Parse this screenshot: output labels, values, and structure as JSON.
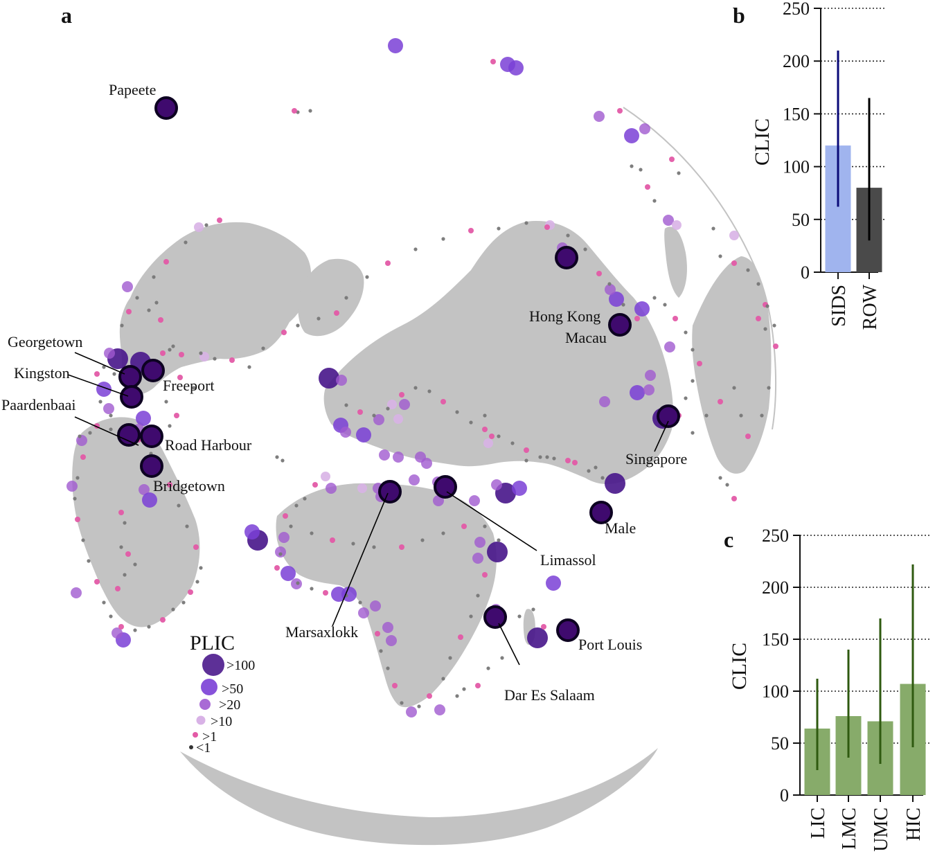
{
  "panels": {
    "a": {
      "letter": "a"
    },
    "b": {
      "letter": "b"
    },
    "c": {
      "letter": "c"
    }
  },
  "colors": {
    "land": "#c3c3c3",
    "tier_gt100": "#4b1a8c",
    "tier_gt50": "#7a3fd6",
    "tier_gt20": "#a05ad0",
    "tier_gt10": "#d8b2e6",
    "tier_gt1": "#e35aa6",
    "tier_lt1": "#777777",
    "highlight_fill": "#3f0a6e",
    "highlight_ring": "#0d0221",
    "sids": "#a0b4ee",
    "row": "#4a4a4a",
    "sids_err": "#0a0a78",
    "row_err": "#000000",
    "income_bar": "#87ab6a",
    "income_err": "#2f5a10"
  },
  "map": {
    "legend": {
      "title": "PLIC",
      "items": [
        {
          "label": ">100",
          "color": "#4b1a8c"
        },
        {
          "label": ">50",
          "color": "#7a3fd6"
        },
        {
          "label": ">20",
          "color": "#a05ad0"
        },
        {
          "label": ">10",
          "color": "#d8b2e6"
        },
        {
          "label": ">1",
          "color": "#e35aa6"
        },
        {
          "label": "<1",
          "color": "#333333"
        }
      ]
    },
    "port_labels": [
      "Papeete",
      "Georgetown",
      "Kingston",
      "Paardenbaai",
      "Freeport",
      "Road Harbour",
      "Bridgetown",
      "Hong Kong",
      "Macau",
      "Singapore",
      "Male",
      "Limassol",
      "Marsaxlokk",
      "Port Louis",
      "Dar Es Salaam"
    ]
  },
  "chart_data": [
    {
      "panel": "b",
      "type": "bar",
      "categories": [
        "SIDS",
        "ROW"
      ],
      "values": [
        120,
        80
      ],
      "error_low": [
        62,
        30
      ],
      "error_high": [
        210,
        165
      ],
      "ylabel": "CLIC",
      "yticks": [
        0,
        50,
        100,
        150,
        200,
        250
      ],
      "ylim": [
        0,
        250
      ],
      "grid": "dotted horizontal"
    },
    {
      "panel": "c",
      "type": "bar",
      "categories": [
        "LIC",
        "LMC",
        "UMC",
        "HIC"
      ],
      "values": [
        64,
        76,
        71,
        107
      ],
      "error_low": [
        24,
        36,
        30,
        46
      ],
      "error_high": [
        112,
        140,
        170,
        222
      ],
      "ylabel": "CLIC",
      "yticks": [
        0,
        50,
        100,
        150,
        200,
        250
      ],
      "ylim": [
        0,
        250
      ],
      "grid": "dotted horizontal"
    }
  ]
}
